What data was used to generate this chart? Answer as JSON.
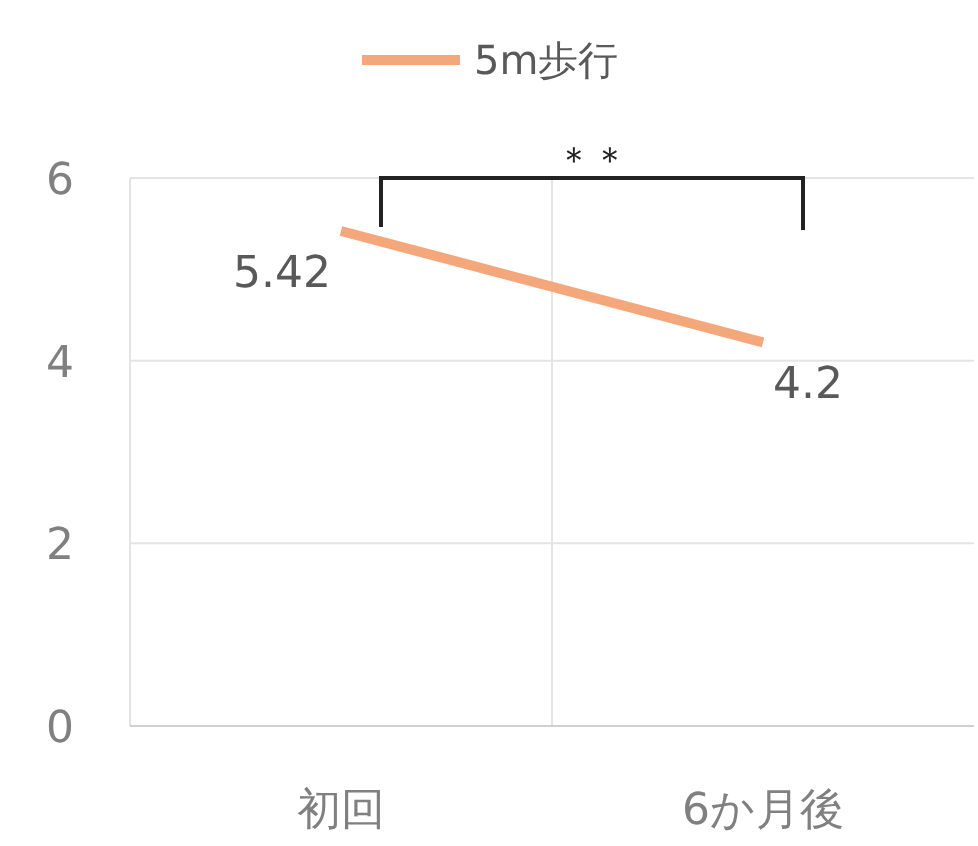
{
  "chart_data": {
    "type": "line",
    "categories": [
      "初回",
      "6か月後"
    ],
    "series": [
      {
        "name": "5m歩行",
        "color": "#f4a77a",
        "values": [
          5.42,
          4.2
        ]
      }
    ],
    "ylim": [
      0,
      6
    ],
    "yticks": [
      0,
      2,
      4,
      6
    ],
    "grid": true,
    "legend": "top",
    "data_labels": true,
    "marker": "none",
    "annotations": [
      "＊＊"
    ]
  }
}
